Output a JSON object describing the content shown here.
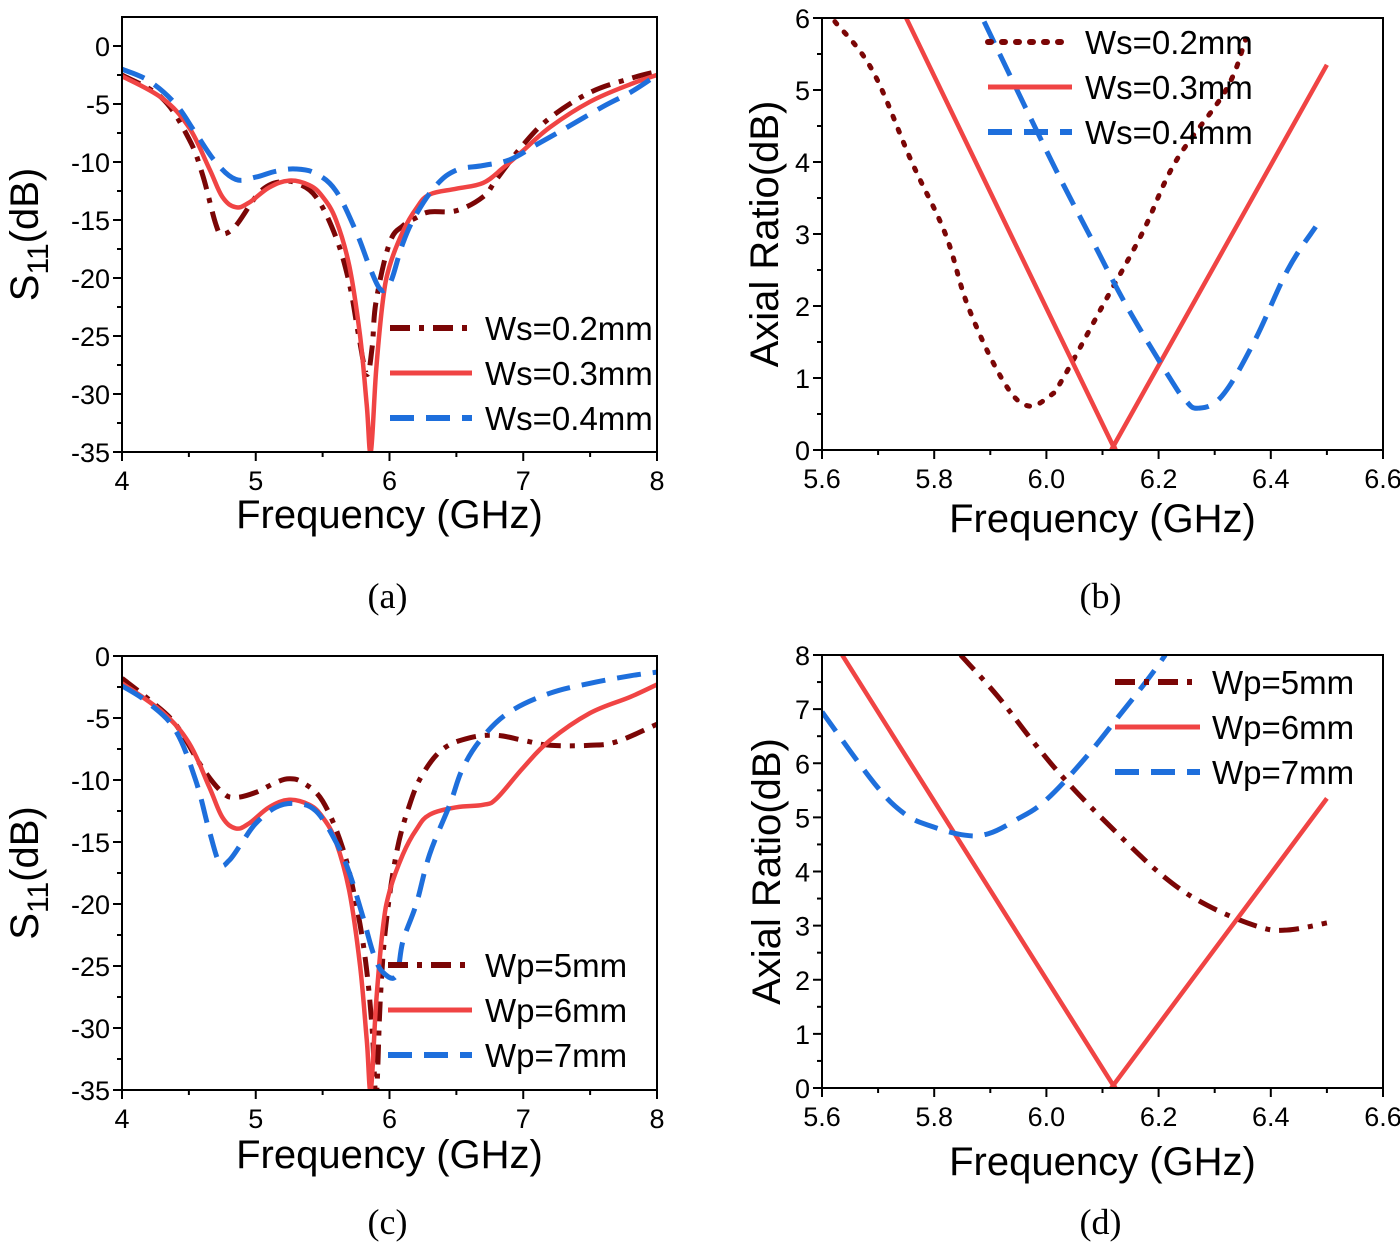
{
  "colors": {
    "dark_red": "#7b0606",
    "red": "#f04444",
    "blue": "#1e6fdc",
    "axis": "#000000"
  },
  "chart_data": [
    {
      "id": "a",
      "type": "line",
      "caption": "(a)",
      "xlabel": "Frequency (GHz)",
      "ylabel": {
        "main": "S",
        "sub": "11",
        "unit": "(dB)"
      },
      "xlim": [
        4,
        8
      ],
      "ylim": [
        -35,
        2.5
      ],
      "xticks": [
        4,
        5,
        6,
        7,
        8
      ],
      "xtick_labels": [
        "4",
        "5",
        "6",
        "7",
        "8"
      ],
      "yticks": [
        0,
        -5,
        -10,
        -15,
        -20,
        -25,
        -30,
        -35
      ],
      "ytick_labels": [
        "0",
        "-5",
        "-10",
        "-15",
        "-20",
        "-25",
        "-30",
        "-35"
      ],
      "grid": false,
      "legend_position": "bottom-right",
      "series": [
        {
          "name": "Ws=0.2mm",
          "color": "#7b0606",
          "style": "dash-dot",
          "x": [
            4,
            4.3,
            4.5,
            4.6,
            4.7,
            4.75,
            4.85,
            5.0,
            5.1,
            5.2,
            5.3,
            5.45,
            5.6,
            5.7,
            5.77,
            5.83,
            5.87,
            5.9,
            6.0,
            6.1,
            6.2,
            6.3,
            6.5,
            6.7,
            6.8,
            7.0,
            7.2,
            7.5,
            7.8,
            8.0
          ],
          "y": [
            -2.5,
            -4.5,
            -8,
            -11,
            -15.3,
            -16.2,
            -15.5,
            -13,
            -12,
            -11.7,
            -11.8,
            -13,
            -16.5,
            -20.5,
            -25,
            -28.3,
            -26,
            -22,
            -17,
            -15.5,
            -14.8,
            -14.3,
            -14.2,
            -13,
            -11.5,
            -8.5,
            -6.2,
            -4,
            -2.8,
            -2.2
          ]
        },
        {
          "name": "Ws=0.3mm",
          "color": "#f04444",
          "style": "solid",
          "x": [
            4,
            4.3,
            4.5,
            4.65,
            4.75,
            4.85,
            4.95,
            5.1,
            5.25,
            5.4,
            5.5,
            5.6,
            5.7,
            5.78,
            5.83,
            5.86,
            5.9,
            5.95,
            6.0,
            6.1,
            6.2,
            6.3,
            6.5,
            6.7,
            6.85,
            7.0,
            7.2,
            7.5,
            7.8,
            8.0
          ],
          "y": [
            -2.6,
            -4.5,
            -7,
            -10.5,
            -13,
            -13.9,
            -13.5,
            -12.2,
            -11.6,
            -12,
            -13,
            -15,
            -19,
            -25,
            -31,
            -35,
            -28,
            -22,
            -19,
            -16,
            -14,
            -12.8,
            -12.3,
            -11.8,
            -10.5,
            -9,
            -7,
            -4.8,
            -3.3,
            -2.5
          ]
        },
        {
          "name": "Ws=0.4mm",
          "color": "#1e6fdc",
          "style": "dashed",
          "x": [
            4,
            4.2,
            4.4,
            4.55,
            4.7,
            4.85,
            5.0,
            5.15,
            5.3,
            5.45,
            5.6,
            5.75,
            5.85,
            5.92,
            5.97,
            6.02,
            6.1,
            6.2,
            6.35,
            6.5,
            6.7,
            6.9,
            7.1,
            7.3,
            7.6,
            7.8,
            8.0
          ],
          "y": [
            -2,
            -3,
            -5,
            -7.5,
            -10,
            -11.5,
            -11.3,
            -10.8,
            -10.6,
            -11,
            -12.5,
            -16,
            -19,
            -20.8,
            -21,
            -20,
            -17,
            -14.5,
            -12,
            -10.7,
            -10.3,
            -9.8,
            -8.5,
            -7.2,
            -5.2,
            -4,
            -2.5
          ]
        }
      ]
    },
    {
      "id": "b",
      "type": "line",
      "caption": "(b)",
      "xlabel": "Frequency (GHz)",
      "ylabel": {
        "main": "Axial Ratio(dB)"
      },
      "xlim": [
        5.6,
        6.6
      ],
      "ylim": [
        0,
        6
      ],
      "xticks": [
        5.6,
        5.8,
        6.0,
        6.2,
        6.4,
        6.6
      ],
      "xtick_labels": [
        "5.6",
        "5.8",
        "6.0",
        "6.2",
        "6.4",
        "6.6"
      ],
      "yticks": [
        0,
        1,
        2,
        3,
        4,
        5,
        6
      ],
      "ytick_labels": [
        "0",
        "1",
        "2",
        "3",
        "4",
        "5",
        "6"
      ],
      "grid": false,
      "legend_position": "top-right",
      "series": [
        {
          "name": "Ws=0.2mm",
          "color": "#7b0606",
          "style": "dotted",
          "x": [
            5.623,
            5.69,
            5.76,
            5.82,
            5.86,
            5.92,
            5.964,
            6.006,
            6.03,
            6.1,
            6.17,
            6.23,
            6.32,
            6.355
          ],
          "y": [
            5.95,
            5.27,
            4.0,
            3.0,
            2.0,
            1.0,
            0.62,
            0.75,
            1.0,
            2.0,
            3.0,
            4.0,
            5.0,
            5.7
          ]
        },
        {
          "name": "Ws=0.3mm",
          "color": "#f04444",
          "style": "solid",
          "x": [
            5.75,
            6.11,
            6.12,
            6.13,
            6.5
          ],
          "y": [
            6.0,
            0.2,
            0.08,
            0.2,
            5.35
          ]
        },
        {
          "name": "Ws=0.4mm",
          "color": "#1e6fdc",
          "style": "dashed",
          "x": [
            5.889,
            6.01,
            6.076,
            6.143,
            6.22,
            6.247,
            6.27,
            6.313,
            6.37,
            6.43,
            6.48
          ],
          "y": [
            5.95,
            4.0,
            3.0,
            2.0,
            1.0,
            0.7,
            0.58,
            0.75,
            1.5,
            2.5,
            3.1
          ]
        }
      ]
    },
    {
      "id": "c",
      "type": "line",
      "caption": "(c)",
      "xlabel": "Frequency (GHz)",
      "ylabel": {
        "main": "S",
        "sub": "11",
        "unit": "(dB)"
      },
      "xlim": [
        4,
        8
      ],
      "ylim": [
        -35,
        0
      ],
      "xticks": [
        4,
        5,
        6,
        7,
        8
      ],
      "xtick_labels": [
        "4",
        "5",
        "6",
        "7",
        "8"
      ],
      "yticks": [
        0,
        -5,
        -10,
        -15,
        -20,
        -25,
        -30,
        -35
      ],
      "ytick_labels": [
        "0",
        "-5",
        "-10",
        "-15",
        "-20",
        "-25",
        "-30",
        "-35"
      ],
      "grid": false,
      "legend_position": "bottom-right",
      "series": [
        {
          "name": "Wp=5mm",
          "color": "#7b0606",
          "style": "dash-dot",
          "x": [
            4,
            4.2,
            4.4,
            4.6,
            4.75,
            4.85,
            5.0,
            5.15,
            5.25,
            5.35,
            5.5,
            5.65,
            5.75,
            5.82,
            5.87,
            5.9,
            5.93,
            5.97,
            6.05,
            6.15,
            6.25,
            6.4,
            6.6,
            6.8,
            7.0,
            7.2,
            7.5,
            7.7,
            8.0
          ],
          "y": [
            -1.8,
            -3.5,
            -5.5,
            -9,
            -11,
            -11.4,
            -11,
            -10.2,
            -9.9,
            -10.2,
            -11.7,
            -15.5,
            -20,
            -24.5,
            -30,
            -35.5,
            -28,
            -22,
            -16,
            -12,
            -9.5,
            -7.5,
            -6.6,
            -6.4,
            -6.8,
            -7.2,
            -7.2,
            -6.9,
            -5.5
          ]
        },
        {
          "name": "Wp=6mm",
          "color": "#f04444",
          "style": "solid",
          "x": [
            4,
            4.3,
            4.5,
            4.65,
            4.75,
            4.85,
            4.95,
            5.1,
            5.25,
            5.4,
            5.5,
            5.6,
            5.7,
            5.78,
            5.83,
            5.86,
            5.9,
            5.95,
            6.0,
            6.1,
            6.2,
            6.3,
            6.5,
            6.7,
            6.8,
            7.0,
            7.2,
            7.5,
            7.8,
            8.0
          ],
          "y": [
            -2.2,
            -4.5,
            -7,
            -10.5,
            -13,
            -13.9,
            -13.5,
            -12.2,
            -11.6,
            -12,
            -13,
            -15,
            -19,
            -25,
            -31,
            -35,
            -28,
            -22,
            -19,
            -16,
            -14,
            -12.8,
            -12.2,
            -12,
            -11.5,
            -9,
            -6.8,
            -4.6,
            -3.3,
            -2.3
          ]
        },
        {
          "name": "Wp=7mm",
          "color": "#1e6fdc",
          "style": "dashed",
          "x": [
            4,
            4.2,
            4.4,
            4.55,
            4.65,
            4.73,
            4.8,
            4.9,
            5.0,
            5.15,
            5.3,
            5.45,
            5.6,
            5.7,
            5.8,
            5.88,
            5.95,
            6.05,
            6.1,
            6.2,
            6.3,
            6.45,
            6.55,
            6.7,
            6.9,
            7.2,
            7.5,
            7.8,
            8.0
          ],
          "y": [
            -2.4,
            -3.8,
            -6,
            -10,
            -14,
            -16.7,
            -16.5,
            -15,
            -13.5,
            -12.2,
            -11.9,
            -12.5,
            -15,
            -17.5,
            -21,
            -24,
            -25.5,
            -25.8,
            -23,
            -20,
            -16,
            -12,
            -9,
            -6.5,
            -4.5,
            -3,
            -2.2,
            -1.6,
            -1.3
          ]
        }
      ]
    },
    {
      "id": "d",
      "type": "line",
      "caption": "(d)",
      "xlabel": "Frequency (GHz)",
      "ylabel": {
        "main": "Axial Ratio(dB)"
      },
      "xlim": [
        5.6,
        6.6
      ],
      "ylim": [
        0,
        8
      ],
      "xticks": [
        5.6,
        5.8,
        6.0,
        6.2,
        6.4,
        6.6
      ],
      "xtick_labels": [
        "5.6",
        "5.8",
        "6.0",
        "6.2",
        "6.4",
        "6.6"
      ],
      "yticks": [
        0,
        1,
        2,
        3,
        4,
        5,
        6,
        7,
        8
      ],
      "ytick_labels": [
        "0",
        "1",
        "2",
        "3",
        "4",
        "5",
        "6",
        "7",
        "8"
      ],
      "grid": false,
      "legend_position": "top-right",
      "series": [
        {
          "name": "Wp=5mm",
          "color": "#7b0606",
          "style": "dash-dot",
          "x": [
            5.847,
            5.913,
            5.98,
            6.04,
            6.12,
            6.21,
            6.286,
            6.378,
            6.43,
            6.5
          ],
          "y": [
            8.0,
            7.24,
            6.35,
            5.62,
            4.77,
            3.9,
            3.38,
            2.98,
            2.92,
            3.05
          ]
        },
        {
          "name": "Wp=6mm",
          "color": "#f04444",
          "style": "solid",
          "x": [
            5.636,
            6.11,
            6.12,
            6.13,
            6.5
          ],
          "y": [
            8.0,
            0.2,
            0.07,
            0.2,
            5.35
          ]
        },
        {
          "name": "Wp=7mm",
          "color": "#1e6fdc",
          "style": "dashed",
          "x": [
            5.6,
            5.694,
            5.748,
            5.797,
            5.855,
            5.897,
            5.947,
            5.996,
            6.063,
            6.13,
            6.18,
            6.212
          ],
          "y": [
            6.95,
            5.62,
            5.06,
            4.83,
            4.67,
            4.7,
            4.96,
            5.29,
            6.02,
            6.88,
            7.54,
            8.0
          ]
        }
      ]
    }
  ]
}
